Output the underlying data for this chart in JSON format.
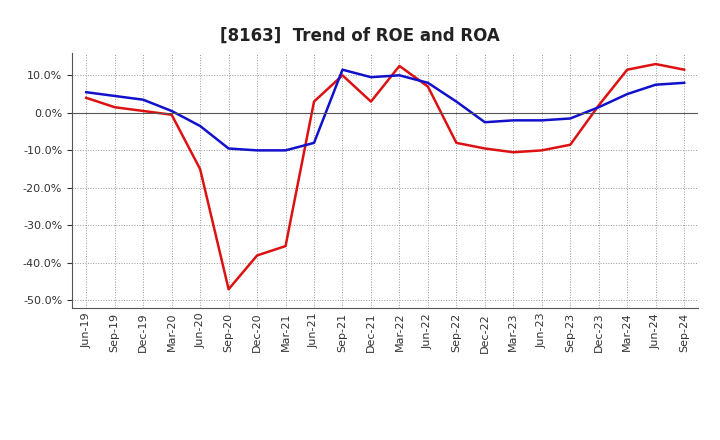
{
  "title": "[8163]  Trend of ROE and ROA",
  "x_labels": [
    "Jun-19",
    "Sep-19",
    "Dec-19",
    "Mar-20",
    "Jun-20",
    "Sep-20",
    "Dec-20",
    "Mar-21",
    "Jun-21",
    "Sep-21",
    "Dec-21",
    "Mar-22",
    "Jun-22",
    "Sep-22",
    "Dec-22",
    "Mar-23",
    "Jun-23",
    "Sep-23",
    "Dec-23",
    "Mar-24",
    "Jun-24",
    "Sep-24"
  ],
  "roe": [
    4.0,
    1.5,
    0.5,
    -0.5,
    -15.0,
    -47.0,
    -38.0,
    -35.5,
    3.0,
    10.0,
    3.0,
    12.5,
    7.0,
    -8.0,
    -9.5,
    -10.5,
    -10.0,
    -8.5,
    2.0,
    11.5,
    13.0,
    11.5
  ],
  "roa": [
    5.5,
    4.5,
    3.5,
    0.5,
    -3.5,
    -9.5,
    -10.0,
    -10.0,
    -8.0,
    11.5,
    9.5,
    10.0,
    8.0,
    3.0,
    -2.5,
    -2.0,
    -2.0,
    -1.5,
    1.5,
    5.0,
    7.5,
    8.0
  ],
  "roe_color": "#dd1111",
  "roa_color": "#1111cc",
  "ylim": [
    -52,
    16
  ],
  "yticks": [
    10.0,
    0.0,
    -10.0,
    -20.0,
    -30.0,
    -40.0,
    -50.0
  ],
  "background_color": "#ffffff",
  "grid_color": "#999999",
  "line_width": 1.8,
  "title_fontsize": 12,
  "tick_fontsize": 8
}
